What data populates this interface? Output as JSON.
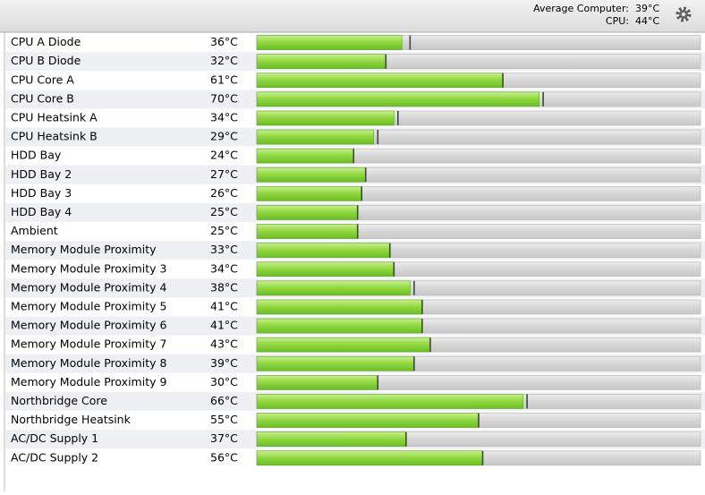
{
  "header": {
    "items": [
      {
        "label": "Average Computer:",
        "value": "39°C"
      },
      {
        "label": "CPU:",
        "value": "44°C"
      }
    ]
  },
  "scale": [
    0,
    110
  ],
  "rows": [
    {
      "name": "CPU A Diode",
      "value": 36,
      "value_label": "36°C",
      "max": 38
    },
    {
      "name": "CPU B Diode",
      "value": 32,
      "value_label": "32°C",
      "max": 32
    },
    {
      "name": "CPU Core A",
      "value": 61,
      "value_label": "61°C",
      "max": 61
    },
    {
      "name": "CPU Core B",
      "value": 70,
      "value_label": "70°C",
      "max": 71
    },
    {
      "name": "CPU Heatsink A",
      "value": 34,
      "value_label": "34°C",
      "max": 35
    },
    {
      "name": "CPU Heatsink B",
      "value": 29,
      "value_label": "29°C",
      "max": 30
    },
    {
      "name": "HDD Bay",
      "value": 24,
      "value_label": "24°C",
      "max": 24
    },
    {
      "name": "HDD Bay 2",
      "value": 27,
      "value_label": "27°C",
      "max": 27
    },
    {
      "name": "HDD Bay 3",
      "value": 26,
      "value_label": "26°C",
      "max": 26
    },
    {
      "name": "HDD Bay 4",
      "value": 25,
      "value_label": "25°C",
      "max": 25
    },
    {
      "name": "Ambient",
      "value": 25,
      "value_label": "25°C",
      "max": 25
    },
    {
      "name": "Memory Module Proximity",
      "value": 33,
      "value_label": "33°C",
      "max": 33
    },
    {
      "name": "Memory Module Proximity 3",
      "value": 34,
      "value_label": "34°C",
      "max": 34
    },
    {
      "name": "Memory Module Proximity 4",
      "value": 38,
      "value_label": "38°C",
      "max": 39
    },
    {
      "name": "Memory Module Proximity 5",
      "value": 41,
      "value_label": "41°C",
      "max": 41
    },
    {
      "name": "Memory Module Proximity 6",
      "value": 41,
      "value_label": "41°C",
      "max": 41
    },
    {
      "name": "Memory Module Proximity 7",
      "value": 43,
      "value_label": "43°C",
      "max": 43
    },
    {
      "name": "Memory Module Proximity 8",
      "value": 39,
      "value_label": "39°C",
      "max": 39
    },
    {
      "name": "Memory Module Proximity 9",
      "value": 30,
      "value_label": "30°C",
      "max": 30
    },
    {
      "name": "Northbridge Core",
      "value": 66,
      "value_label": "66°C",
      "max": 67
    },
    {
      "name": "Northbridge Heatsink",
      "value": 55,
      "value_label": "55°C",
      "max": 55
    },
    {
      "name": "AC/DC Supply 1",
      "value": 37,
      "value_label": "37°C",
      "max": 37
    },
    {
      "name": "AC/DC Supply 2",
      "value": 56,
      "value_label": "56°C",
      "max": 56
    }
  ]
}
